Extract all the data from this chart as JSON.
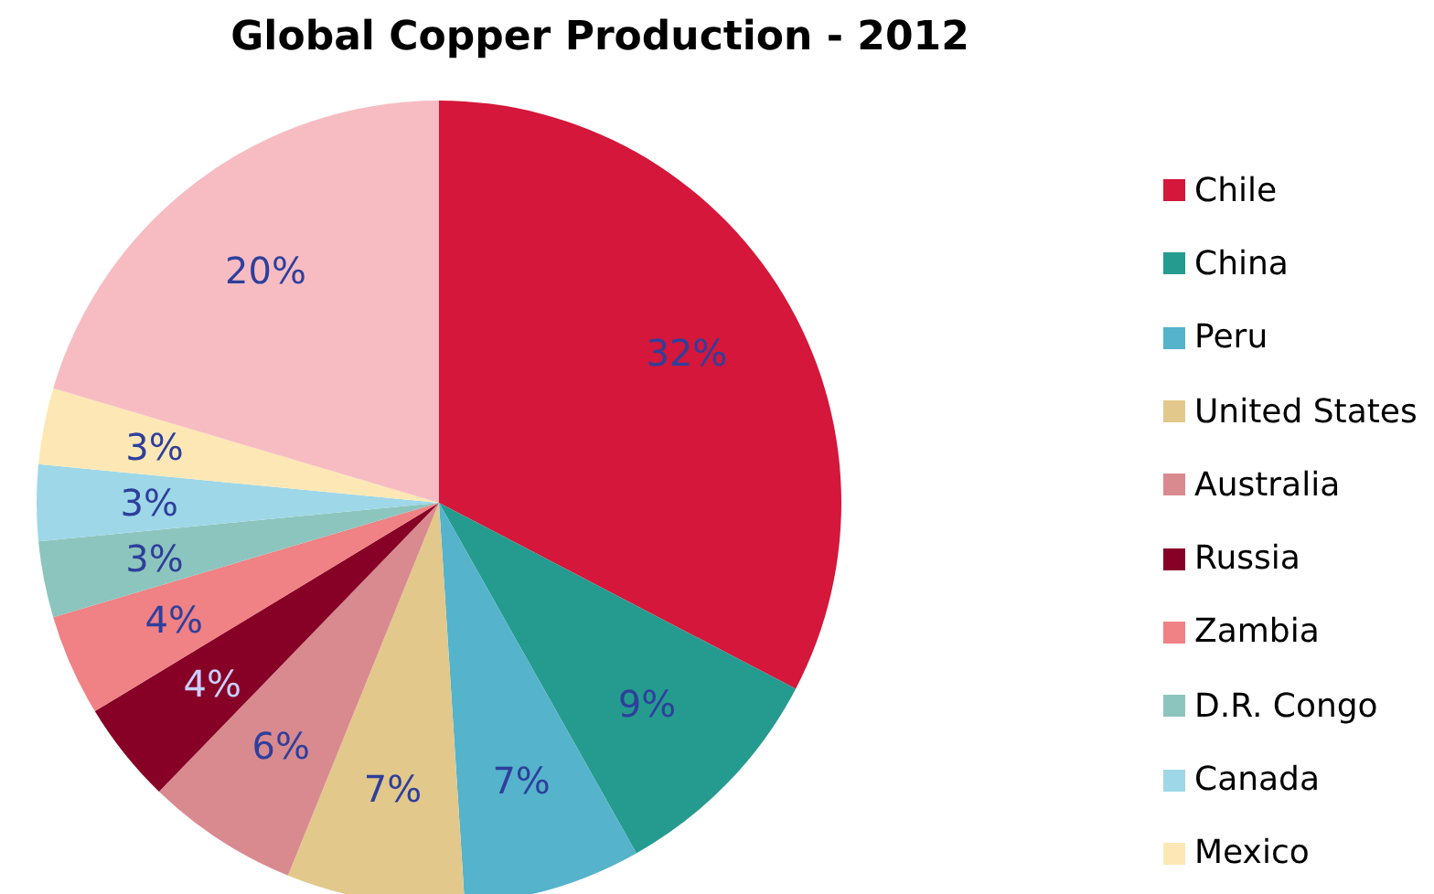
{
  "chart_data": {
    "type": "pie",
    "title": "Global Copper Production - 2012",
    "categories": [
      "Chile",
      "China",
      "Peru",
      "United States",
      "Australia",
      "Russia",
      "Zambia",
      "D.R. Congo",
      "Canada",
      "Mexico",
      null
    ],
    "values": [
      32,
      9,
      7,
      7,
      6,
      4,
      4,
      3,
      3,
      3,
      20
    ],
    "colors": [
      "#d4173a",
      "#259b8f",
      "#55b3cb",
      "#e2c88a",
      "#d98a8f",
      "#870026",
      "#f08184",
      "#8cc5bd",
      "#9ed7e8",
      "#fde8b5",
      "#f7bcc2"
    ],
    "value_labels": [
      "32%",
      "9%",
      "7%",
      "7%",
      "6%",
      "4%",
      "4%",
      "3%",
      "3%",
      "3%",
      "20%"
    ],
    "legend": "right"
  }
}
